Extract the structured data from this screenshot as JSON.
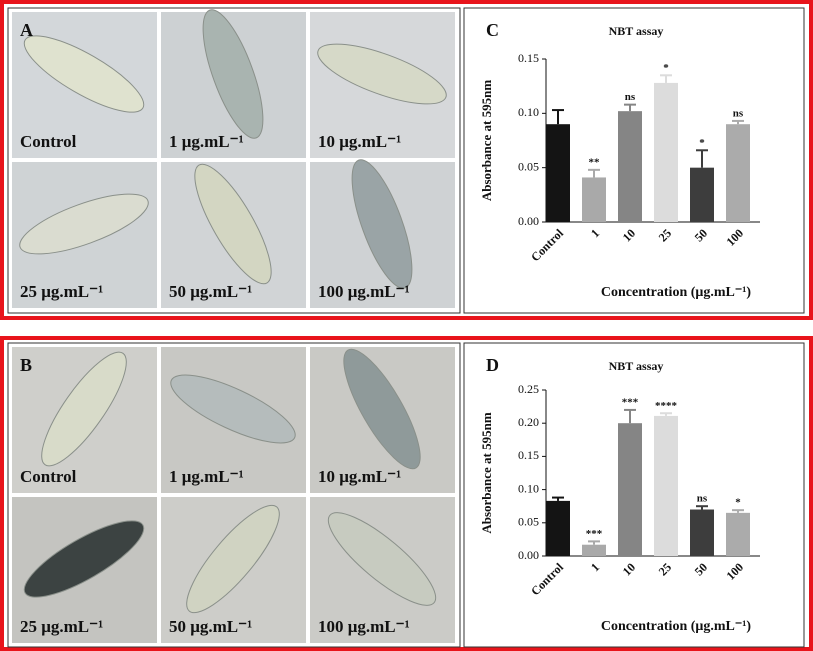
{
  "panels": [
    {
      "letter": "A",
      "labels": [
        "Control",
        "1 μg.mL⁻¹",
        "10 μg.mL⁻¹",
        "25 μg.mL⁻¹",
        "50 μg.mL⁻¹",
        "100 μg.mL⁻¹"
      ]
    },
    {
      "letter": "B",
      "labels": [
        "Control",
        "1 μg.mL⁻¹",
        "10 μg.mL⁻¹",
        "25 μg.mL⁻¹",
        "50 μg.mL⁻¹",
        "100 μg.mL⁻¹"
      ]
    }
  ],
  "chart_data": [
    {
      "type": "bar",
      "letter": "C",
      "title": "NBT assay",
      "y_label": "Absorbance at 595nm",
      "x_label": "Concentration (μg.mL⁻¹)",
      "categories": [
        "Control",
        "1",
        "10",
        "25",
        "50",
        "100"
      ],
      "values": [
        0.09,
        0.041,
        0.102,
        0.128,
        0.05,
        0.09
      ],
      "errors": [
        0.013,
        0.007,
        0.006,
        0.007,
        0.016,
        0.003
      ],
      "annotations": [
        null,
        "**",
        "ns",
        "*",
        "*",
        "ns"
      ],
      "colors": [
        "#141414",
        "#a9a9a9",
        "#858585",
        "#dcdcdc",
        "#3d3d3d",
        "#ababab"
      ],
      "ylim": [
        0,
        0.15
      ],
      "yticks": [
        {
          "value": 0,
          "label": "0.00"
        },
        {
          "value": 0.05,
          "label": "0.05"
        },
        {
          "value": 0.1,
          "label": "0.10"
        },
        {
          "value": 0.15,
          "label": "0.15"
        }
      ]
    },
    {
      "type": "bar",
      "letter": "D",
      "title": "NBT assay",
      "y_label": "Absorbance at 595nm",
      "x_label": "Concentration (μg.mL⁻¹)",
      "categories": [
        "Control",
        "1",
        "10",
        "25",
        "50",
        "100"
      ],
      "values": [
        0.083,
        0.017,
        0.2,
        0.211,
        0.07,
        0.065
      ],
      "errors": [
        0.005,
        0.005,
        0.02,
        0.004,
        0.005,
        0.004
      ],
      "annotations": [
        null,
        "***",
        "***",
        "****",
        "ns",
        "*"
      ],
      "colors": [
        "#141414",
        "#a9a9a9",
        "#858585",
        "#dcdcdc",
        "#3d3d3d",
        "#ababab"
      ],
      "ylim": [
        0,
        0.25
      ],
      "yticks": [
        {
          "value": 0,
          "label": "0.00"
        },
        {
          "value": 0.05,
          "label": "0.05"
        },
        {
          "value": 0.1,
          "label": "0.10"
        },
        {
          "value": 0.15,
          "label": "0.15"
        },
        {
          "value": 0.2,
          "label": "0.20"
        },
        {
          "value": 0.25,
          "label": "0.25"
        }
      ]
    }
  ]
}
